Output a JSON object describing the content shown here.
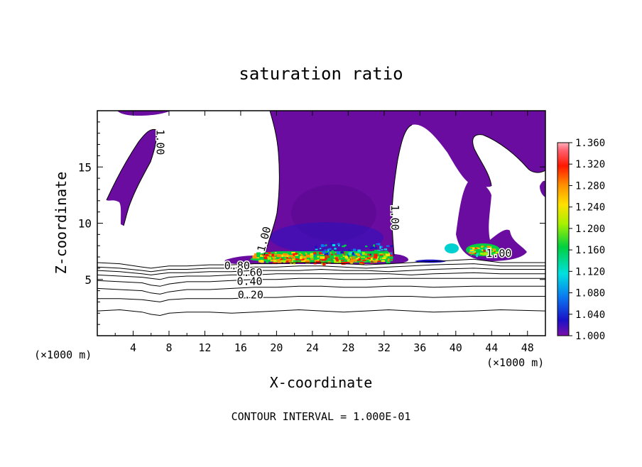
{
  "chart_data": {
    "type": "heatmap",
    "title": "saturation ratio",
    "xlabel": "X-coordinate",
    "ylabel": "Z-coordinate",
    "x_unit_label": "(×1000 m)",
    "z_unit_label": "(×1000 m)",
    "xlim": [
      0,
      50
    ],
    "ylim": [
      0,
      20
    ],
    "x_ticks": [
      4,
      8,
      12,
      16,
      20,
      24,
      28,
      32,
      36,
      40,
      44,
      48
    ],
    "y_ticks": [
      5,
      10,
      15
    ],
    "footer": "CONTOUR INTERVAL = 1.000E-01",
    "colorbar": {
      "min": 1.0,
      "max": 1.36,
      "ticks": [
        "1.360",
        "1.320",
        "1.280",
        "1.240",
        "1.200",
        "1.160",
        "1.120",
        "1.080",
        "1.040",
        "1.000"
      ],
      "tick_values": [
        1.36,
        1.32,
        1.28,
        1.24,
        1.2,
        1.16,
        1.12,
        1.08,
        1.04,
        1.0
      ]
    },
    "contour_labels": [
      {
        "text": "1.00",
        "x": 6.6,
        "z": 17.2,
        "rotate": 90
      },
      {
        "text": "1.00",
        "x": 19.0,
        "z": 8.5,
        "rotate": -75
      },
      {
        "text": "1.00",
        "x": 32.8,
        "z": 10.5,
        "rotate": 90
      },
      {
        "text": "1.00",
        "x": 44.8,
        "z": 7.0,
        "rotate": 0
      },
      {
        "text": "0.80",
        "x": 15.6,
        "z": 5.9,
        "rotate": 0
      },
      {
        "text": "0.60",
        "x": 17.0,
        "z": 5.3,
        "rotate": 0
      },
      {
        "text": "0.40",
        "x": 17.0,
        "z": 4.5,
        "rotate": 0
      },
      {
        "text": "0.20",
        "x": 17.1,
        "z": 3.3,
        "rotate": 0
      }
    ],
    "contours": [
      {
        "level": 0.2,
        "z": [
          2.2,
          2.3,
          2.1,
          1.9,
          1.8,
          2.0,
          2.1,
          2.1,
          2.0,
          2.1,
          2.2,
          2.3,
          2.2,
          2.1,
          2.2,
          2.3,
          2.2,
          2.1,
          2.2,
          2.3,
          2.2
        ]
      },
      {
        "level": 0.3,
        "z": [
          3.3,
          3.3,
          3.2,
          3.1,
          3.0,
          3.2,
          3.3,
          3.3,
          3.3,
          3.4,
          3.4,
          3.5,
          3.5,
          3.4,
          3.4,
          3.5,
          3.5,
          3.4,
          3.5,
          3.5,
          3.5
        ]
      },
      {
        "level": 0.4,
        "z": [
          4.2,
          4.1,
          4.0,
          3.8,
          3.7,
          3.9,
          4.1,
          4.1,
          4.2,
          4.3,
          4.3,
          4.4,
          4.4,
          4.3,
          4.3,
          4.4,
          4.4,
          4.3,
          4.4,
          4.4,
          4.4
        ]
      },
      {
        "level": 0.5,
        "z": [
          4.9,
          4.8,
          4.7,
          4.5,
          4.4,
          4.6,
          4.8,
          4.8,
          4.9,
          5.0,
          5.0,
          5.1,
          5.1,
          5.0,
          5.0,
          5.1,
          5.1,
          5.1,
          5.1,
          5.1,
          5.1
        ]
      },
      {
        "level": 0.6,
        "z": [
          5.4,
          5.3,
          5.2,
          5.1,
          5.0,
          5.2,
          5.3,
          5.3,
          5.4,
          5.4,
          5.5,
          5.5,
          5.5,
          5.5,
          5.5,
          5.5,
          5.4,
          5.5,
          5.6,
          5.5,
          5.5
        ]
      },
      {
        "level": 0.7,
        "z": [
          5.8,
          5.7,
          5.5,
          5.4,
          5.5,
          5.6,
          5.6,
          5.7,
          5.7,
          5.8,
          5.8,
          5.8,
          5.9,
          5.8,
          5.8,
          5.7,
          5.8,
          5.9,
          6.0,
          5.9,
          5.9
        ]
      },
      {
        "level": 0.8,
        "z": [
          6.1,
          6.0,
          5.8,
          5.7,
          5.8,
          5.9,
          5.9,
          6.0,
          6.0,
          6.1,
          6.1,
          6.2,
          6.2,
          6.1,
          6.0,
          6.1,
          6.2,
          6.3,
          6.4,
          6.2,
          6.2
        ]
      },
      {
        "level": 0.9,
        "z": [
          6.5,
          6.4,
          6.1,
          6.0,
          6.1,
          6.2,
          6.2,
          6.3,
          6.3,
          6.4,
          6.4,
          6.5,
          6.5,
          6.4,
          6.3,
          6.4,
          6.5,
          6.6,
          6.8,
          6.5,
          6.5
        ]
      }
    ],
    "contour_x": [
      0,
      2.5,
      5,
      6,
      7,
      8,
      10,
      12.5,
      15,
      17.5,
      20,
      22.5,
      25,
      27.5,
      30,
      32.5,
      35,
      37.5,
      42,
      45,
      50
    ]
  }
}
